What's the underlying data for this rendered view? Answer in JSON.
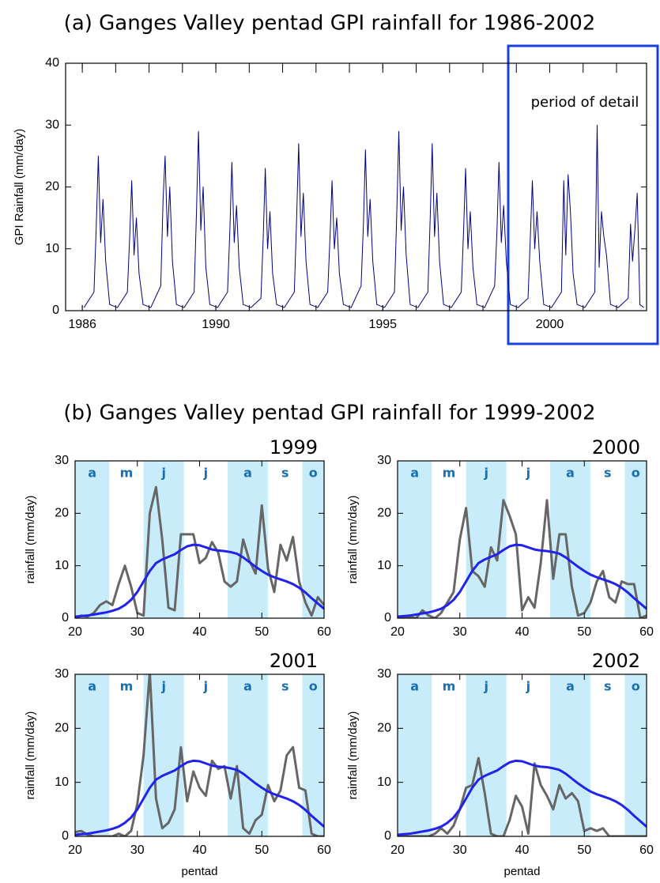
{
  "chart_data": [
    {
      "type": "line",
      "title": "(a) Ganges Valley pentad GPI rainfall for 1986-2002",
      "ylabel": "GPI Rainfall (mm/day)",
      "annotation": "period of detail",
      "xlim": [
        1985.5,
        2002.9
      ],
      "xticks": [
        1986,
        1990,
        1995,
        2000
      ],
      "xminor_ticks": [
        1986,
        1987,
        1988,
        1989,
        1990,
        1991,
        1992,
        1993,
        1994,
        1995,
        1996,
        1997,
        1998,
        1999,
        2000,
        2001,
        2002
      ],
      "ylim": [
        0,
        40
      ],
      "yticks": [
        0,
        10,
        20,
        30,
        40
      ],
      "x": [
        1986.05,
        1986.35,
        1986.42,
        1986.48,
        1986.55,
        1986.62,
        1986.7,
        1986.82,
        1987.05,
        1987.35,
        1987.42,
        1987.48,
        1987.55,
        1987.62,
        1987.7,
        1987.82,
        1988.05,
        1988.35,
        1988.42,
        1988.48,
        1988.55,
        1988.62,
        1988.7,
        1988.82,
        1989.05,
        1989.35,
        1989.42,
        1989.48,
        1989.55,
        1989.62,
        1989.7,
        1989.82,
        1990.05,
        1990.35,
        1990.42,
        1990.48,
        1990.55,
        1990.62,
        1990.7,
        1990.82,
        1991.05,
        1991.35,
        1991.42,
        1991.48,
        1991.55,
        1991.62,
        1991.7,
        1991.82,
        1992.05,
        1992.35,
        1992.42,
        1992.48,
        1992.55,
        1992.62,
        1992.7,
        1992.82,
        1993.05,
        1993.35,
        1993.42,
        1993.48,
        1993.55,
        1993.62,
        1993.7,
        1993.82,
        1994.05,
        1994.35,
        1994.42,
        1994.48,
        1994.55,
        1994.62,
        1994.7,
        1994.82,
        1995.05,
        1995.35,
        1995.42,
        1995.48,
        1995.55,
        1995.62,
        1995.7,
        1995.82,
        1996.05,
        1996.35,
        1996.42,
        1996.48,
        1996.55,
        1996.62,
        1996.7,
        1996.82,
        1997.05,
        1997.35,
        1997.42,
        1997.48,
        1997.55,
        1997.62,
        1997.7,
        1997.82,
        1998.05,
        1998.35,
        1998.42,
        1998.48,
        1998.55,
        1998.62,
        1998.7,
        1998.82,
        1999.05,
        1999.35,
        1999.42,
        1999.48,
        1999.55,
        1999.62,
        1999.7,
        1999.82,
        2000.05,
        2000.35,
        2000.42,
        2000.48,
        2000.55,
        2000.62,
        2000.7,
        2000.82,
        2001.05,
        2001.35,
        2001.42,
        2001.48,
        2001.55,
        2001.62,
        2001.7,
        2001.82,
        2002.05,
        2002.35,
        2002.42,
        2002.48,
        2002.55,
        2002.62,
        2002.7,
        2002.82
      ],
      "series": [
        {
          "color": "#000080",
          "values": [
            0.5,
            3,
            14,
            25,
            11,
            18,
            8,
            1,
            0.5,
            3,
            12,
            21,
            9,
            15,
            6,
            1,
            0.5,
            4,
            18,
            25,
            12,
            20,
            8,
            1,
            0.5,
            3,
            16,
            29,
            13,
            20,
            7,
            1,
            0.5,
            3,
            13,
            24,
            11,
            17,
            7,
            1,
            0.5,
            2,
            12,
            23,
            10,
            16,
            6,
            1,
            0.5,
            3,
            15,
            27,
            12,
            19,
            8,
            1,
            0.5,
            3,
            12,
            21,
            10,
            15,
            6,
            1,
            0.5,
            4,
            14,
            26,
            12,
            18,
            8,
            1,
            0.5,
            3,
            16,
            29,
            13,
            20,
            9,
            1,
            0.5,
            3,
            15,
            27,
            12,
            19,
            8,
            1,
            0.5,
            3,
            13,
            23,
            10,
            16,
            7,
            1,
            0.5,
            4,
            13,
            24,
            11,
            17,
            8,
            1,
            0.5,
            2,
            12,
            21,
            10,
            16,
            8,
            1,
            0.5,
            3,
            21,
            9,
            22,
            16,
            6,
            1,
            0.5,
            3,
            30,
            7,
            16,
            12,
            9,
            1,
            0.5,
            2,
            14,
            8,
            13,
            19,
            1,
            0.5
          ]
        }
      ]
    },
    {
      "type": "line",
      "title": "1999",
      "ylabel": "rainfall (mm/day)",
      "xlim": [
        20,
        60
      ],
      "xticks": [
        20,
        30,
        40,
        50,
        60
      ],
      "ylim": [
        0,
        30
      ],
      "yticks": [
        0,
        10,
        20,
        30
      ],
      "month_labels": [
        "a",
        "m",
        "j",
        "j",
        "a",
        "s",
        "o"
      ],
      "month_edges": [
        20,
        25.5,
        31,
        37.5,
        44.5,
        51,
        56.5,
        60
      ],
      "month_colors": [
        "#c8ecfa",
        "#ffffff",
        "#c8ecfa",
        "#ffffff",
        "#c8ecfa",
        "#ffffff",
        "#c8ecfa"
      ],
      "x": [
        20,
        21,
        22,
        23,
        24,
        25,
        26,
        27,
        28,
        29,
        30,
        31,
        32,
        33,
        34,
        35,
        36,
        37,
        38,
        39,
        40,
        41,
        42,
        43,
        44,
        45,
        46,
        47,
        48,
        49,
        50,
        51,
        52,
        53,
        54,
        55,
        56,
        57,
        58,
        59,
        60
      ],
      "series": [
        {
          "color": "#666666",
          "values": [
            0,
            0.5,
            0.3,
            1,
            2.5,
            3.2,
            2.5,
            6.5,
            10,
            6,
            1,
            0.5,
            20,
            25,
            15,
            2,
            1.5,
            16,
            16,
            16,
            10.5,
            11.5,
            14.5,
            12.5,
            7,
            6,
            7,
            15,
            11,
            8.5,
            21.5,
            9.5,
            5,
            14,
            11,
            15.5,
            7,
            3,
            0.5,
            4,
            2.5
          ]
        },
        {
          "color": "#2222ee",
          "values": [
            0.3,
            0.4,
            0.5,
            0.7,
            0.9,
            1.1,
            1.4,
            1.8,
            2.5,
            3.5,
            5,
            7,
            9,
            10.5,
            11.2,
            11.7,
            12.2,
            13,
            13.7,
            14,
            13.9,
            13.5,
            13.1,
            12.9,
            12.8,
            12.6,
            12.3,
            11.6,
            10.7,
            9.8,
            9,
            8.3,
            7.8,
            7.4,
            7,
            6.5,
            5.8,
            4.9,
            3.8,
            2.8,
            1.8
          ]
        }
      ]
    },
    {
      "type": "line",
      "title": "2000",
      "ylabel": "rainfall (mm/day)",
      "xlim": [
        20,
        60
      ],
      "xticks": [
        20,
        30,
        40,
        50,
        60
      ],
      "ylim": [
        0,
        30
      ],
      "yticks": [
        0,
        10,
        20,
        30
      ],
      "month_labels": [
        "a",
        "m",
        "j",
        "j",
        "a",
        "s",
        "o"
      ],
      "month_edges": [
        20,
        25.5,
        31,
        37.5,
        44.5,
        51,
        56.5,
        60
      ],
      "month_colors": [
        "#c8ecfa",
        "#ffffff",
        "#c8ecfa",
        "#ffffff",
        "#c8ecfa",
        "#ffffff",
        "#c8ecfa"
      ],
      "x": [
        20,
        21,
        22,
        23,
        24,
        25,
        26,
        27,
        28,
        29,
        30,
        31,
        32,
        33,
        34,
        35,
        36,
        37,
        38,
        39,
        40,
        41,
        42,
        43,
        44,
        45,
        46,
        47,
        48,
        49,
        50,
        51,
        52,
        53,
        54,
        55,
        56,
        57,
        58,
        59,
        60
      ],
      "series": [
        {
          "color": "#666666",
          "values": [
            0,
            0,
            0.2,
            0,
            1.5,
            0.5,
            0,
            1,
            3,
            5,
            15,
            21,
            9,
            8,
            6,
            13.5,
            11,
            22.5,
            19.5,
            16,
            1.5,
            4,
            2,
            10.5,
            22.5,
            7.5,
            16,
            16,
            6,
            0.5,
            1,
            3,
            7,
            9,
            4,
            3,
            7,
            6.5,
            6.5,
            0,
            0.5
          ]
        },
        {
          "color": "#2222ee",
          "values": [
            0.3,
            0.4,
            0.5,
            0.7,
            0.9,
            1.1,
            1.4,
            1.8,
            2.5,
            3.5,
            5,
            7,
            9,
            10.5,
            11.2,
            11.7,
            12.2,
            13,
            13.7,
            14,
            13.9,
            13.5,
            13.1,
            12.9,
            12.8,
            12.6,
            12.3,
            11.6,
            10.7,
            9.8,
            9,
            8.3,
            7.8,
            7.4,
            7,
            6.5,
            5.8,
            4.9,
            3.8,
            2.8,
            1.8
          ]
        }
      ]
    },
    {
      "type": "line",
      "title": "2001",
      "ylabel": "rainfall (mm/day)",
      "xlabel": "pentad",
      "xlim": [
        20,
        60
      ],
      "xticks": [
        20,
        30,
        40,
        50,
        60
      ],
      "ylim": [
        0,
        30
      ],
      "yticks": [
        0,
        10,
        20,
        30
      ],
      "month_labels": [
        "a",
        "m",
        "j",
        "j",
        "a",
        "s",
        "o"
      ],
      "month_edges": [
        20,
        25.5,
        31,
        37.5,
        44.5,
        51,
        56.5,
        60
      ],
      "month_colors": [
        "#c8ecfa",
        "#ffffff",
        "#c8ecfa",
        "#ffffff",
        "#c8ecfa",
        "#ffffff",
        "#c8ecfa"
      ],
      "x": [
        20,
        21,
        22,
        23,
        24,
        25,
        26,
        27,
        28,
        29,
        30,
        31,
        32,
        33,
        34,
        35,
        36,
        37,
        38,
        39,
        40,
        41,
        42,
        43,
        44,
        45,
        46,
        47,
        48,
        49,
        50,
        51,
        52,
        53,
        54,
        55,
        56,
        57,
        58,
        59,
        60
      ],
      "series": [
        {
          "color": "#666666",
          "values": [
            0.8,
            1,
            0.3,
            0,
            0,
            0,
            0,
            0.5,
            0,
            1,
            6,
            15,
            30.5,
            7,
            1.5,
            2.5,
            5,
            16.5,
            6.5,
            12,
            9,
            7.5,
            14,
            12.5,
            13,
            7,
            13,
            1.5,
            0.5,
            3,
            4,
            9.5,
            6.5,
            8.5,
            15,
            16.5,
            9,
            8.5,
            0.5,
            0,
            0
          ]
        },
        {
          "color": "#2222ee",
          "values": [
            0.3,
            0.4,
            0.5,
            0.7,
            0.9,
            1.1,
            1.4,
            1.8,
            2.5,
            3.5,
            5,
            7,
            9,
            10.5,
            11.2,
            11.7,
            12.2,
            13,
            13.7,
            14,
            13.9,
            13.5,
            13.1,
            12.9,
            12.8,
            12.6,
            12.3,
            11.6,
            10.7,
            9.8,
            9,
            8.3,
            7.8,
            7.4,
            7,
            6.5,
            5.8,
            4.9,
            3.8,
            2.8,
            1.8
          ]
        }
      ]
    },
    {
      "type": "line",
      "title": "2002",
      "ylabel": "rainfall (mm/day)",
      "xlabel": "pentad",
      "xlim": [
        20,
        60
      ],
      "xticks": [
        20,
        30,
        40,
        50,
        60
      ],
      "ylim": [
        0,
        30
      ],
      "yticks": [
        0,
        10,
        20,
        30
      ],
      "month_labels": [
        "a",
        "m",
        "j",
        "j",
        "a",
        "s",
        "o"
      ],
      "month_edges": [
        20,
        25.5,
        31,
        37.5,
        44.5,
        51,
        56.5,
        60
      ],
      "month_colors": [
        "#c8ecfa",
        "#ffffff",
        "#c8ecfa",
        "#ffffff",
        "#c8ecfa",
        "#ffffff",
        "#c8ecfa"
      ],
      "x": [
        20,
        21,
        22,
        23,
        24,
        25,
        26,
        27,
        28,
        29,
        30,
        31,
        32,
        33,
        34,
        35,
        36,
        37,
        38,
        39,
        40,
        41,
        42,
        43,
        44,
        45,
        46,
        47,
        48,
        49,
        50,
        51,
        52,
        53,
        54,
        55,
        56,
        57,
        58,
        59,
        60
      ],
      "series": [
        {
          "color": "#666666",
          "values": [
            0,
            0,
            0,
            0,
            0,
            0,
            0.5,
            1.5,
            0.5,
            2,
            5,
            9,
            9.5,
            14.5,
            8,
            0.5,
            0,
            0,
            3,
            7.5,
            5.5,
            0.5,
            13.5,
            9.5,
            7.5,
            5,
            9.5,
            7,
            8,
            6.5,
            1,
            1.5,
            1,
            1.5,
            0,
            0,
            0,
            0,
            0,
            0,
            0
          ]
        },
        {
          "color": "#2222ee",
          "values": [
            0.3,
            0.4,
            0.5,
            0.7,
            0.9,
            1.1,
            1.4,
            1.8,
            2.5,
            3.5,
            5,
            7,
            9,
            10.5,
            11.2,
            11.7,
            12.2,
            13,
            13.7,
            14,
            13.9,
            13.5,
            13.1,
            12.9,
            12.8,
            12.6,
            12.3,
            11.6,
            10.7,
            9.8,
            9,
            8.3,
            7.8,
            7.4,
            7,
            6.5,
            5.8,
            4.9,
            3.8,
            2.8,
            1.8
          ]
        }
      ]
    }
  ],
  "panel_b_title": "(b) Ganges Valley pentad GPI rainfall for 1999-2002"
}
